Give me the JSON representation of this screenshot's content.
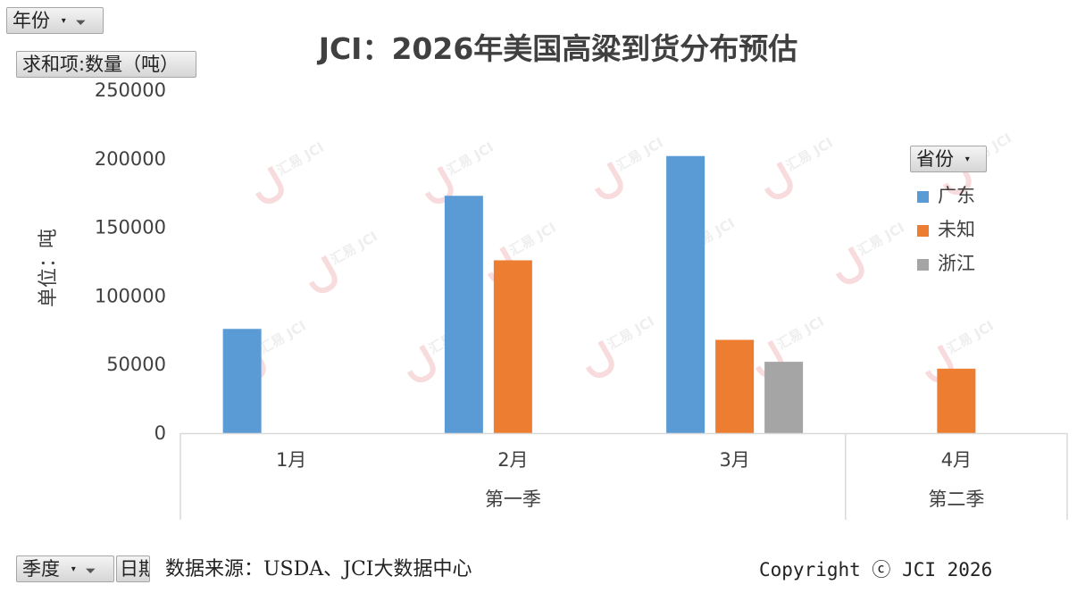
{
  "pivot_fields": {
    "year": "年份",
    "sum": "求和项:数量（吨）",
    "quarter": "季度",
    "date": "日期",
    "province": "省份"
  },
  "source_note": "数据来源：USDA、JCI大数据中心",
  "copyright": "Copyright ⓒ JCI 2026",
  "watermark": "汇易 JCI",
  "chart_data": {
    "type": "bar",
    "title": "JCI：2026年美国高粱到货分布预估",
    "ylabel": "单位：吨",
    "xlabel": "",
    "ylim": [
      0,
      250000
    ],
    "yticks": [
      "0",
      "50000",
      "100000",
      "150000",
      "200000",
      "250000"
    ],
    "categories": [
      "1月",
      "2月",
      "3月",
      "4月"
    ],
    "groups": [
      {
        "label": "第一季",
        "categories": [
          "1月",
          "2月",
          "3月"
        ]
      },
      {
        "label": "第二季",
        "categories": [
          "4月"
        ]
      }
    ],
    "series": [
      {
        "name": "广东",
        "color": "#5B9BD5",
        "values": [
          76000,
          173000,
          202000,
          null
        ]
      },
      {
        "name": "未知",
        "color": "#ED7D31",
        "values": [
          null,
          126000,
          68000,
          47000
        ]
      },
      {
        "name": "浙江",
        "color": "#A5A5A5",
        "values": [
          null,
          null,
          52000,
          null
        ]
      }
    ],
    "grid": false,
    "legend_position": "right"
  }
}
